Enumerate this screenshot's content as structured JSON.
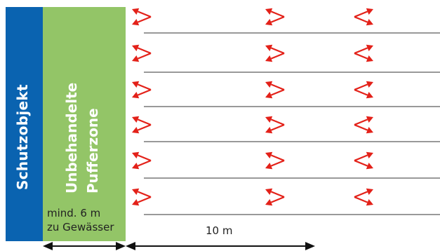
{
  "zones": {
    "schutzobjekt": "Schutzobjekt",
    "puffer_line1": "Unbehandelte",
    "puffer_line2": "Pufferzone"
  },
  "notes": {
    "buffer_line1": "mind. 6 m",
    "buffer_line2": "zu Gewässer",
    "spacing": "10 m"
  },
  "colors": {
    "schutzobjekt": "#0a63b0",
    "pufferzone": "#93c567",
    "arrows": "#e32119",
    "lines": "#333333"
  },
  "icons": [
    "arrow-left-icon",
    "arrow-right-icon",
    "double-arrow-icon"
  ]
}
